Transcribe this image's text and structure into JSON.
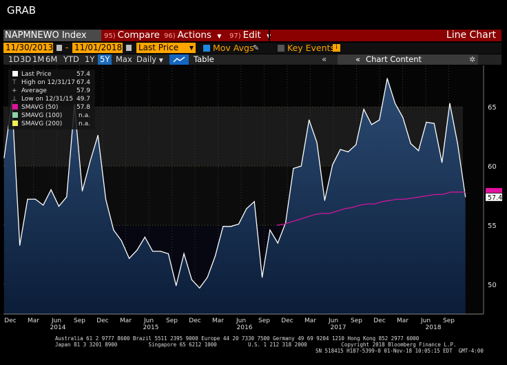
{
  "app": {
    "grab": "GRAB"
  },
  "toolbar": {
    "ticker": "NAPMNEWO Index",
    "compare_num": "95)",
    "compare_label": "Compare",
    "actions_num": "96)",
    "actions_label": "Actions",
    "edit_num": "97)",
    "edit_label": "Edit",
    "chart_type": "Line Chart"
  },
  "settings": {
    "start_date": "11/30/2013",
    "end_date": "11/01/2018",
    "field": "Last Price",
    "mov_avgs": "Mov Avgs",
    "key_events": "Key Events"
  },
  "periods": [
    "1D",
    "3D",
    "1M",
    "6M",
    "YTD",
    "1Y",
    "5Y",
    "Max"
  ],
  "selected_period": "5Y",
  "frequency": "Daily",
  "table_label": "Table",
  "chart_content_label": "Chart Content",
  "legend": [
    {
      "label": "Last Price",
      "value": "57.4",
      "color": "#ffffff"
    },
    {
      "label": "High on 12/31/17",
      "value": "67.4",
      "color": "#bbbbbb"
    },
    {
      "label": "Average",
      "value": "57.9",
      "color": "#bbbbbb"
    },
    {
      "label": "Low on 12/31/15",
      "value": "49.7",
      "color": "#bbbbbb"
    },
    {
      "label": "SMAVG (50)",
      "value": "57.8",
      "color": "#e0119d"
    },
    {
      "label": "SMAVG (100)",
      "value": "n.a.",
      "color": "#8fd3a6"
    },
    {
      "label": "SMAVG (200)",
      "value": "n.a.",
      "color": "#f1f15a"
    }
  ],
  "chart_data": {
    "type": "area",
    "ylim": [
      47.5,
      68.5
    ],
    "yticks": [
      50,
      55,
      60,
      65
    ],
    "x_month_labels": [
      "Dec",
      "Mar",
      "Jun",
      "Sep",
      "Dec",
      "Mar",
      "Jun",
      "Sep",
      "Dec",
      "Mar",
      "Jun",
      "Sep",
      "Dec",
      "Mar",
      "Jun",
      "Sep",
      "Dec",
      "Mar",
      "Jun",
      "Sep"
    ],
    "x_year_labels": [
      "2014",
      "2015",
      "2016",
      "2017",
      "2018"
    ],
    "last_price_label": "57.4",
    "smavg_label": "57.8",
    "series": [
      {
        "name": "Last Price",
        "values": [
          60.7,
          65.5,
          53.3,
          57.2,
          57.2,
          56.7,
          58.0,
          56.6,
          57.4,
          65.2,
          57.9,
          60.4,
          62.6,
          57.2,
          54.6,
          53.7,
          52.2,
          52.9,
          54.0,
          52.8,
          52.8,
          52.6,
          49.9,
          52.6,
          50.4,
          49.7,
          50.6,
          52.4,
          54.9,
          54.9,
          55.1,
          56.4,
          57.0,
          50.6,
          54.6,
          53.5,
          55.2,
          59.8,
          60.0,
          63.9,
          62.0,
          57.1,
          60.1,
          61.4,
          61.2,
          61.8,
          64.8,
          63.5,
          63.9,
          67.4,
          65.3,
          64.1,
          61.9,
          61.3,
          63.7,
          63.6,
          60.3,
          65.3,
          61.9,
          57.4
        ]
      },
      {
        "name": "SMAVG (50)",
        "values": [
          55.0,
          55.1,
          55.3,
          55.5,
          55.7,
          55.9,
          56.0,
          56.0,
          56.2,
          56.4,
          56.5,
          56.7,
          56.8,
          56.8,
          57.0,
          57.1,
          57.2,
          57.2,
          57.3,
          57.4,
          57.5,
          57.6,
          57.6,
          57.8,
          57.8,
          57.8
        ]
      }
    ]
  },
  "footer": {
    "line1": "Australia 61 2 9777 8600 Brazil 5511 2395 9000 Europe 44 20 7330 7500 Germany 49 69 9204 1210 Hong Kong 852 2977 6000",
    "line2": "Japan 81 3 3201 8900          Singapore 65 6212 1000          U.S. 1 212 318 2000           Copyright 2018 Bloomberg Finance L.P.",
    "line3": "SN 518415 H187-5399-0 01-Nov-18 10:05:15 EDT  GMT-4:00"
  }
}
